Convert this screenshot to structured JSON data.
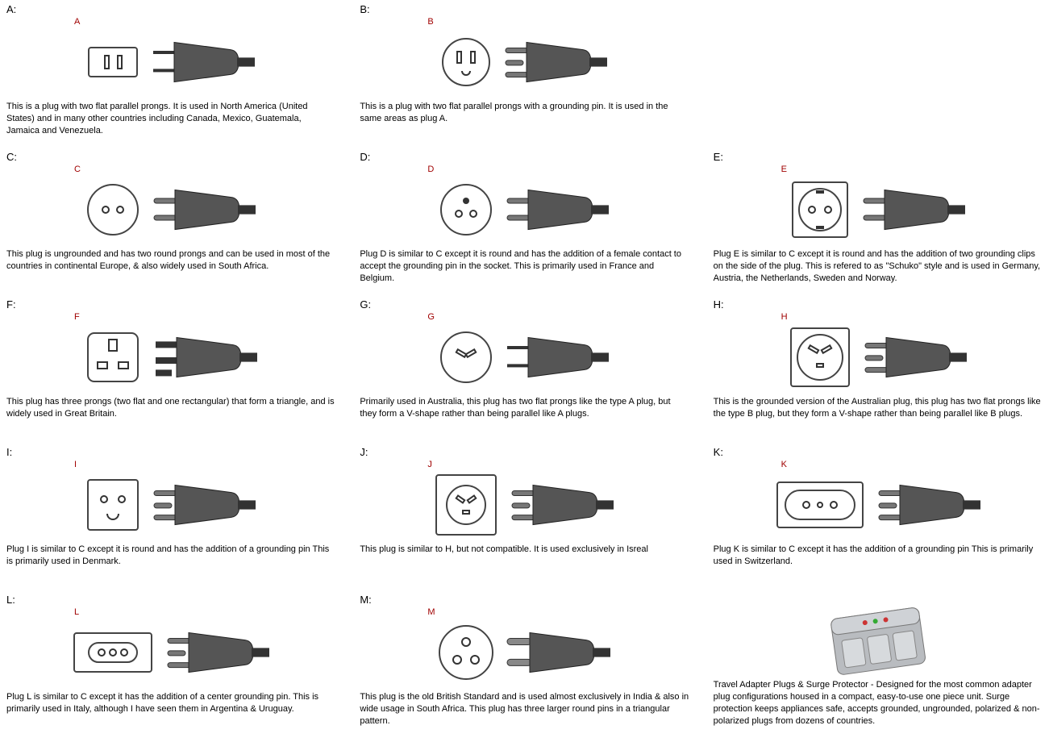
{
  "labelColor": "#A00000",
  "plugs": [
    {
      "id": "A",
      "title": "A:",
      "label": "A",
      "desc": "This is a plug with two flat parallel prongs. It is used in North America (United States) and in many other countries including Canada, Mexico, Guatemala, Jamaica and Venezuela."
    },
    {
      "id": "B",
      "title": "B:",
      "label": "B",
      "desc": "This is a plug with two flat parallel prongs with a grounding pin. It is used in the same areas as plug A."
    },
    {
      "id": "spacer1",
      "title": "",
      "label": "",
      "desc": ""
    },
    {
      "id": "C",
      "title": "C:",
      "label": "C",
      "desc": "This plug is ungrounded and has two round prongs and can be used in most of the countries in continental Europe, & also widely used in South Africa."
    },
    {
      "id": "D",
      "title": "D:",
      "label": "D",
      "desc": "Plug D is similar to C except it is round and has the addition of a female contact to accept the grounding pin in the socket. This is primarily used in France and Belgium."
    },
    {
      "id": "E",
      "title": "E:",
      "label": "E",
      "desc": "Plug E is similar to C except it is round and has the addition of two grounding clips on the side of the plug. This is refered to as \"Schuko\" style and is used in Germany, Austria, the Netherlands, Sweden and Norway."
    },
    {
      "id": "F",
      "title": "F:",
      "label": "F",
      "desc": "This plug has three prongs (two flat and one rectangular) that form a triangle, and is widely used in Great Britain."
    },
    {
      "id": "G",
      "title": "G:",
      "label": "G",
      "desc": "Primarily used in Australia, this plug has two flat prongs like the type A plug, but they form a V-shape rather than being parallel like A plugs."
    },
    {
      "id": "H",
      "title": "H:",
      "label": "H",
      "desc": "This is the grounded version of the Australian plug, this plug has two flat prongs like the type B plug, but they form a V-shape rather than being parallel like B plugs."
    },
    {
      "id": "I",
      "title": "I:",
      "label": "I",
      "desc": "Plug I is similar to C except it is round and has the addition of a grounding pin This is primarily used in Denmark."
    },
    {
      "id": "J",
      "title": "J:",
      "label": "J",
      "desc": "This plug is similar to H, but not compatible. It is used exclusively in Isreal"
    },
    {
      "id": "K",
      "title": "K:",
      "label": "K",
      "desc": "Plug K is similar to C except it has the addition of a grounding pin This is primarily used in Switzerland."
    },
    {
      "id": "L",
      "title": "L:",
      "label": "L",
      "desc": "Plug L is similar to C except it has the addition of a center grounding pin. This is primarily used in Italy, although I have seen them in Argentina & Uruguay."
    },
    {
      "id": "M",
      "title": "M:",
      "label": "M",
      "desc": "This plug is the old British Standard and is used almost exclusively in India & also in wide usage in South Africa. This plug has three larger round pins in a triangular pattern."
    },
    {
      "id": "adapter",
      "title": "",
      "label": "",
      "desc": "Travel Adapter Plugs & Surge Protector - Designed for the most common adapter plug configurations housed in a compact, easy-to-use one piece unit. Surge protection keeps appliances safe, accepts grounded, ungrounded, polarized & non-polarized plugs from dozens of countries."
    }
  ]
}
